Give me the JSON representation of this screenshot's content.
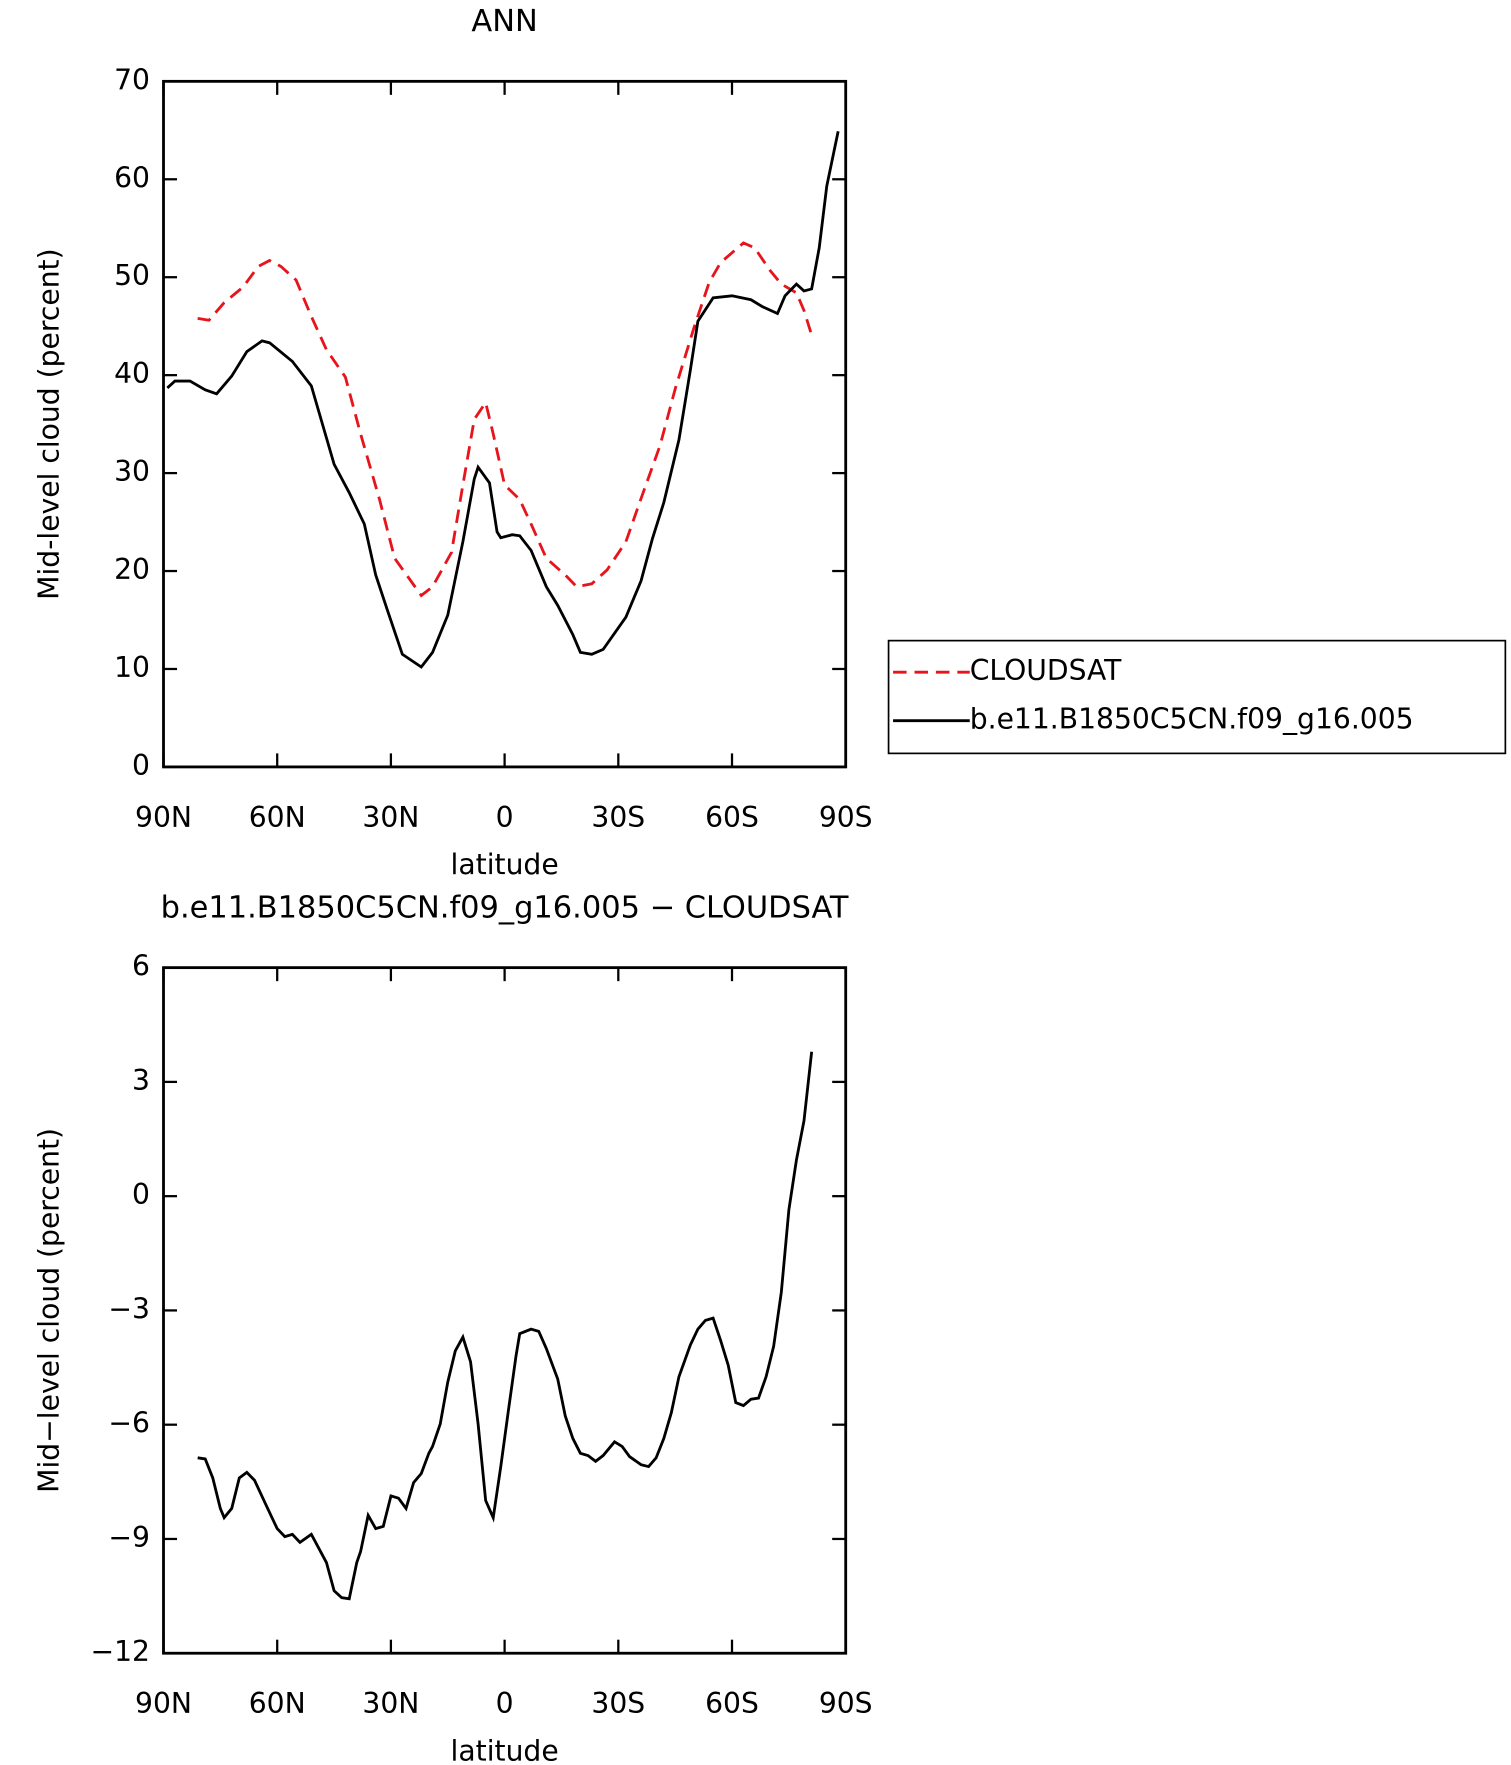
{
  "chart_data": [
    {
      "type": "line",
      "title": "ANN",
      "xlabel": "latitude",
      "ylabel": "Mid-level cloud (percent)",
      "xlim": [
        90,
        -90
      ],
      "xticks": [
        {
          "value": 90,
          "label": "90N"
        },
        {
          "value": 60,
          "label": "60N"
        },
        {
          "value": 30,
          "label": "30N"
        },
        0,
        {
          "value": -30,
          "label": "30S"
        },
        {
          "value": -60,
          "label": "60S"
        },
        {
          "value": -90,
          "label": "90S"
        }
      ],
      "ylim": [
        0,
        70
      ],
      "yticks": [
        0,
        10,
        20,
        30,
        40,
        50,
        60,
        70
      ],
      "legend": "right",
      "series": [
        {
          "name": "CLOUDSAT",
          "color": "#e8141c",
          "dash": true,
          "x": [
            81,
            78,
            74,
            69,
            65,
            62,
            59,
            55,
            51,
            47,
            42,
            38,
            33,
            29,
            22,
            19,
            14,
            11,
            8,
            5,
            3,
            0,
            -4,
            -7,
            -11,
            -16,
            -19,
            -23,
            -27,
            -32,
            -36,
            -41,
            -45,
            -50,
            -54,
            -57,
            -63,
            -66,
            -70,
            -73,
            -77,
            -79,
            -81
          ],
          "values": [
            45.8,
            45.6,
            47.4,
            49,
            51.1,
            51.7,
            51.1,
            49.7,
            46,
            42.6,
            39.8,
            34,
            27.3,
            21.3,
            17.5,
            18.4,
            21.9,
            28.8,
            35.5,
            37.2,
            34,
            28.8,
            27.3,
            24.8,
            21.3,
            19.6,
            18.4,
            18.7,
            20.1,
            23,
            27.4,
            32.8,
            38.6,
            44.9,
            49.5,
            51.5,
            53.5,
            53,
            50.7,
            49.3,
            48.4,
            46.6,
            44.1
          ]
        },
        {
          "name": "b.e11.B1850C5CN.f09_g16.005",
          "color": "#000000",
          "dash": false,
          "x": [
            89,
            87,
            83,
            79,
            76,
            72,
            68,
            64,
            62,
            56,
            51,
            47,
            45,
            41,
            37,
            34,
            31,
            27,
            22,
            19,
            15,
            11,
            8,
            7,
            4,
            2,
            1,
            -2,
            -4,
            -7,
            -11,
            -14,
            -18,
            -20,
            -23,
            -26,
            -32,
            -36,
            -39,
            -42,
            -46,
            -49,
            -51,
            -55,
            -60,
            -65,
            -68,
            -72,
            -74,
            -77,
            -79,
            -81,
            -83,
            -85,
            -88
          ],
          "values": [
            38.7,
            39.4,
            39.4,
            38.5,
            38.1,
            39.9,
            42.4,
            43.5,
            43.3,
            41.4,
            38.9,
            33.6,
            30.9,
            28,
            24.8,
            19.6,
            16.1,
            11.5,
            10.2,
            11.7,
            15.5,
            23,
            29.4,
            30.6,
            29,
            24,
            23.4,
            23.7,
            23.6,
            22.1,
            18.4,
            16.5,
            13.5,
            11.7,
            11.5,
            12,
            15.3,
            19,
            23.3,
            27,
            33.4,
            40.5,
            45.5,
            47.9,
            48.1,
            47.7,
            47,
            46.3,
            48.1,
            49.3,
            48.6,
            48.8,
            53,
            59.3,
            64.9
          ]
        }
      ]
    },
    {
      "type": "line",
      "title": "b.e11.B1850C5CN.f09_g16.005 − CLOUDSAT",
      "xlabel": "latitude",
      "ylabel": "Mid−level cloud (percent)",
      "xlim": [
        90,
        -90
      ],
      "xticks": [
        {
          "value": 90,
          "label": "90N"
        },
        {
          "value": 60,
          "label": "60N"
        },
        {
          "value": 30,
          "label": "30N"
        },
        0,
        {
          "value": -30,
          "label": "30S"
        },
        {
          "value": -60,
          "label": "60S"
        },
        {
          "value": -90,
          "label": "90S"
        }
      ],
      "ylim": [
        -12,
        6
      ],
      "yticks": [
        {
          "value": -12,
          "label": "−12"
        },
        {
          "value": -9,
          "label": "−9"
        },
        {
          "value": -6,
          "label": "−6"
        },
        {
          "value": -3,
          "label": "−3"
        },
        0,
        3,
        6
      ],
      "series": [
        {
          "color": "#000000",
          "dash": false,
          "x": [
            81,
            79,
            77,
            75,
            74,
            72,
            70,
            68,
            66,
            63,
            60,
            58,
            56,
            54,
            51,
            47,
            45,
            43,
            41,
            39,
            38,
            36,
            34,
            32,
            30,
            28,
            26,
            24,
            22,
            20,
            19,
            17,
            15,
            13,
            11,
            9,
            7,
            5,
            3,
            1,
            -1,
            -3,
            -4,
            -7,
            -9,
            -11,
            -14,
            -16,
            -18,
            -20,
            -22,
            -24,
            -26,
            -29,
            -31,
            -33,
            -36,
            -38,
            -40,
            -42,
            -44,
            -46,
            -49,
            -51,
            -53,
            -55,
            -57,
            -59,
            -61,
            -63,
            -65,
            -67,
            -69,
            -71,
            -73,
            -75,
            -77,
            -79,
            -81
          ],
          "values": [
            -6.87,
            -6.9,
            -7.4,
            -8.2,
            -8.44,
            -8.2,
            -7.4,
            -7.25,
            -7.46,
            -8.1,
            -8.73,
            -8.94,
            -8.88,
            -9.09,
            -8.88,
            -9.62,
            -10.36,
            -10.54,
            -10.57,
            -9.62,
            -9.33,
            -8.38,
            -8.73,
            -8.67,
            -7.87,
            -7.93,
            -8.2,
            -7.52,
            -7.28,
            -6.75,
            -6.57,
            -5.98,
            -4.88,
            -4.06,
            -3.7,
            -4.35,
            -5.98,
            -7.99,
            -8.44,
            -7.1,
            -5.62,
            -4.2,
            -3.61,
            -3.49,
            -3.55,
            -4,
            -4.8,
            -5.77,
            -6.36,
            -6.75,
            -6.81,
            -6.96,
            -6.81,
            -6.45,
            -6.57,
            -6.84,
            -7.05,
            -7.1,
            -6.87,
            -6.36,
            -5.68,
            -4.74,
            -3.91,
            -3.49,
            -3.26,
            -3.2,
            -3.79,
            -4.44,
            -5.42,
            -5.5,
            -5.33,
            -5.3,
            -4.74,
            -3.94,
            -2.52,
            -0.36,
            0.95,
            1.98,
            3.79
          ]
        }
      ]
    }
  ]
}
